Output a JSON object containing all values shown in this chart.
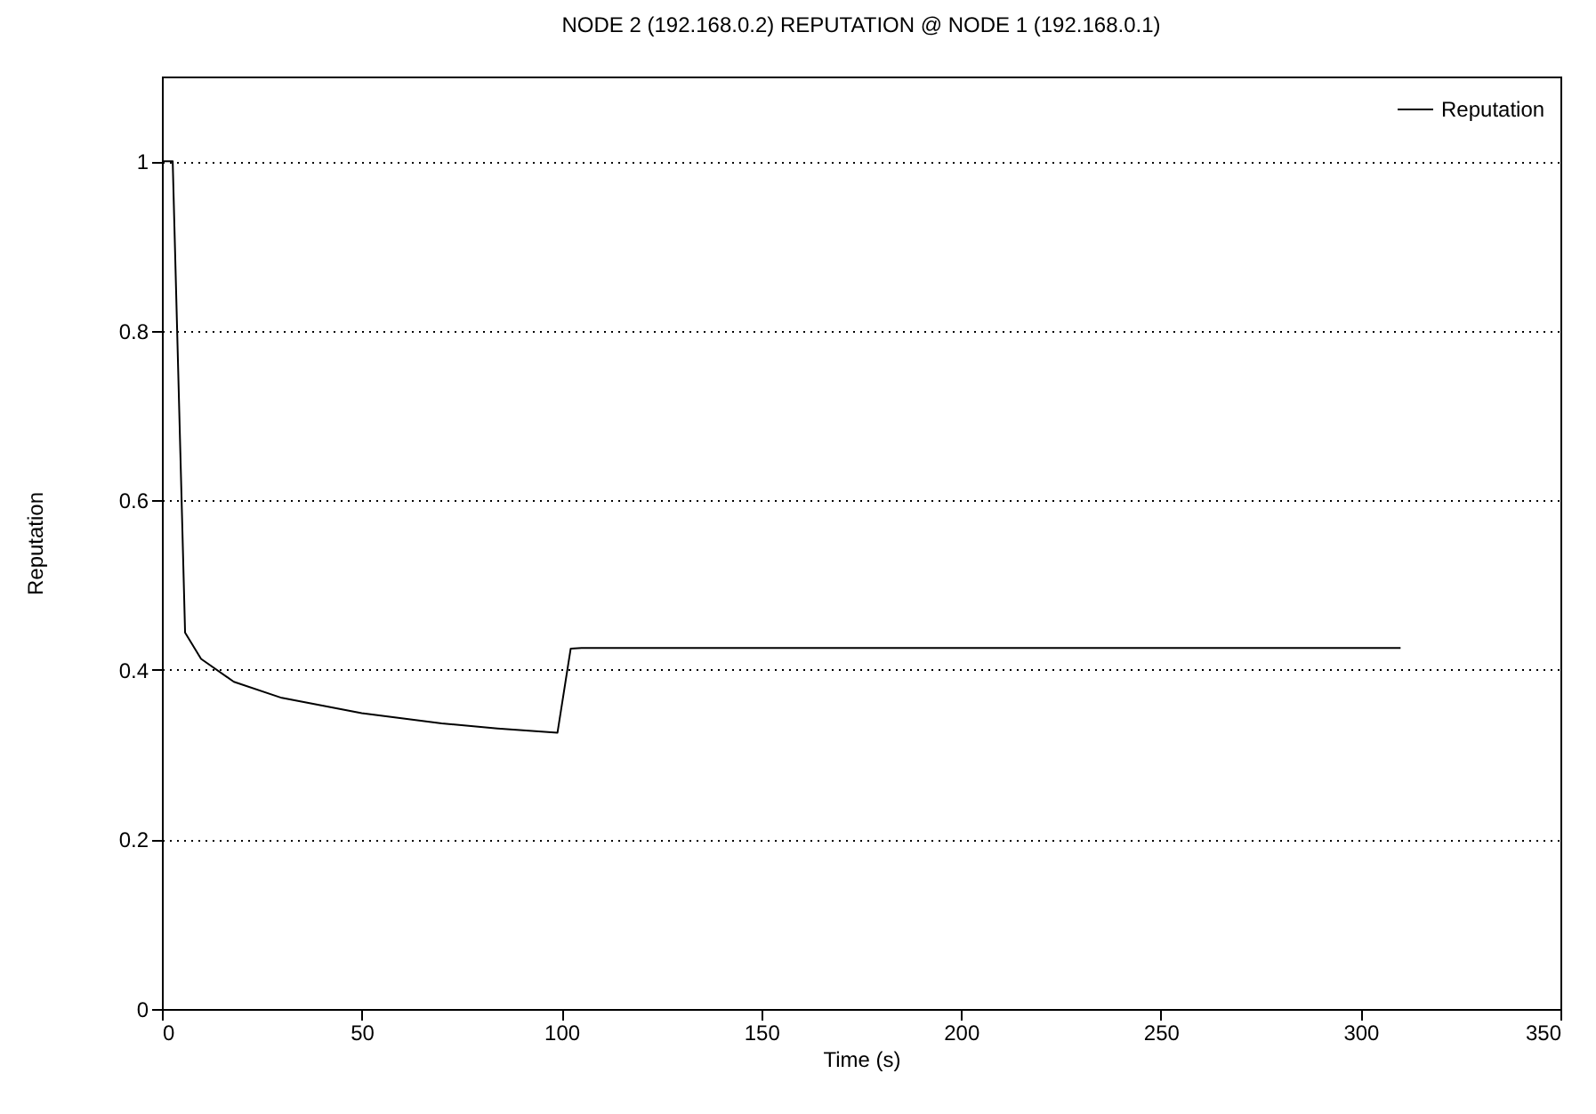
{
  "chart_data": {
    "type": "line",
    "title": "NODE 2 (192.168.0.2) REPUTATION @ NODE 1 (192.168.0.1)",
    "xlabel": "Time (s)",
    "ylabel": "Reputation",
    "xlim": [
      0,
      350
    ],
    "xticks": [
      0,
      50,
      100,
      150,
      200,
      250,
      300,
      350
    ],
    "ylim": [
      0,
      1.1
    ],
    "yticks": [
      0,
      0.2,
      0.4,
      0.6,
      0.8,
      1
    ],
    "grid": "y",
    "legend": "top right",
    "series": [
      {
        "name": "Reputation",
        "color": "#000000",
        "x": [
          0,
          2.7,
          5.8,
          9.8,
          18,
          30,
          50,
          70,
          84,
          99,
          102.3,
          105,
          310
        ],
        "values": [
          1,
          1,
          0.444,
          0.413,
          0.386,
          0.367,
          0.349,
          0.337,
          0.331,
          0.326,
          0.425,
          0.426,
          0.426
        ]
      }
    ]
  }
}
